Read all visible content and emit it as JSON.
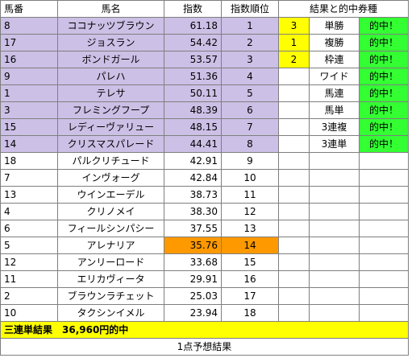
{
  "colors": {
    "highlight_rank": "#ccc0e6",
    "highlight_index": "#ff9900",
    "bet_rank": "#ffff00",
    "hit": "#33ff33"
  },
  "headers": {
    "no": "馬番",
    "name": "馬名",
    "index": "指数",
    "rank": "指数順位",
    "result": "結果と的中券種"
  },
  "rows": [
    {
      "no": "8",
      "name": "ココナッツブラウン",
      "index": "61.18",
      "rank": "1",
      "r_rank": "3",
      "r_type": "単勝",
      "r_hit": "的中！"
    },
    {
      "no": "17",
      "name": "ジョスラン",
      "index": "54.42",
      "rank": "2",
      "r_rank": "1",
      "r_type": "複勝",
      "r_hit": "的中！"
    },
    {
      "no": "16",
      "name": "ボンドガール",
      "index": "53.57",
      "rank": "3",
      "r_rank": "2",
      "r_type": "枠連",
      "r_hit": "的中！"
    },
    {
      "no": "9",
      "name": "パレハ",
      "index": "51.36",
      "rank": "4",
      "r_rank": "",
      "r_type": "ワイド",
      "r_hit": "的中！"
    },
    {
      "no": "1",
      "name": "テレサ",
      "index": "50.11",
      "rank": "5",
      "r_rank": "",
      "r_type": "馬連",
      "r_hit": "的中！"
    },
    {
      "no": "3",
      "name": "フレミングフープ",
      "index": "48.39",
      "rank": "6",
      "r_rank": "",
      "r_type": "馬単",
      "r_hit": "的中！"
    },
    {
      "no": "15",
      "name": "レディーヴァリュー",
      "index": "48.15",
      "rank": "7",
      "r_rank": "",
      "r_type": "3連複",
      "r_hit": "的中！"
    },
    {
      "no": "14",
      "name": "クリスマスパレード",
      "index": "44.41",
      "rank": "8",
      "r_rank": "",
      "r_type": "3連単",
      "r_hit": "的中！"
    },
    {
      "no": "18",
      "name": "パルクリチュード",
      "index": "42.91",
      "rank": "9",
      "r_rank": "",
      "r_type": "",
      "r_hit": ""
    },
    {
      "no": "7",
      "name": "インヴォーグ",
      "index": "42.84",
      "rank": "10",
      "r_rank": "",
      "r_type": "",
      "r_hit": ""
    },
    {
      "no": "13",
      "name": "ウインエーデル",
      "index": "38.73",
      "rank": "11",
      "r_rank": "",
      "r_type": "",
      "r_hit": ""
    },
    {
      "no": "4",
      "name": "クリノメイ",
      "index": "38.30",
      "rank": "12",
      "r_rank": "",
      "r_type": "",
      "r_hit": ""
    },
    {
      "no": "6",
      "name": "フィールシンパシー",
      "index": "37.55",
      "rank": "13",
      "r_rank": "",
      "r_type": "",
      "r_hit": ""
    },
    {
      "no": "5",
      "name": "アレナリア",
      "index": "35.76",
      "rank": "14",
      "r_rank": "",
      "r_type": "",
      "r_hit": ""
    },
    {
      "no": "12",
      "name": "アンリーロード",
      "index": "33.68",
      "rank": "15",
      "r_rank": "",
      "r_type": "",
      "r_hit": ""
    },
    {
      "no": "11",
      "name": "エリカヴィータ",
      "index": "29.91",
      "rank": "16",
      "r_rank": "",
      "r_type": "",
      "r_hit": ""
    },
    {
      "no": "2",
      "name": "ブラウンラチェット",
      "index": "25.03",
      "rank": "17",
      "r_rank": "",
      "r_type": "",
      "r_hit": ""
    },
    {
      "no": "10",
      "name": "タクシンイメル",
      "index": "23.94",
      "rank": "18",
      "r_rank": "",
      "r_type": "",
      "r_hit": ""
    }
  ],
  "footer": {
    "summary": "三連単結果　36,960円的中",
    "note": "1点予想結果"
  }
}
